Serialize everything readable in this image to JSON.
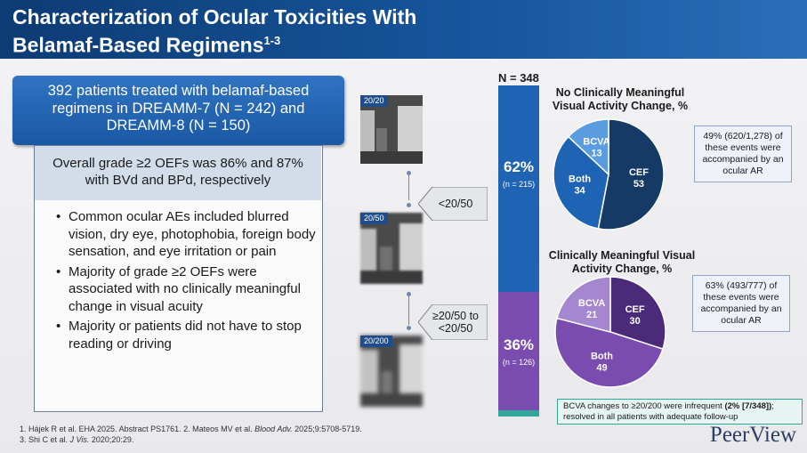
{
  "header": {
    "title_line1": "Characterization of Ocular Toxicities With",
    "title_line2": "Belamaf-Based Regimens",
    "title_sup": "1-3"
  },
  "left": {
    "intro": "392 patients treated with belamaf-based regimens in DREAMM-7 (N = 242) and DREAMM-8 (N = 150)",
    "grade_text": "Overall grade ≥2 OEFs was 86% and 87% with BVd and BPd, respectively",
    "bullets": [
      "Common ocular AEs included blurred vision, dry eye, photophobia, foreign body sensation, and eye irritation or pain",
      "Majority of grade ≥2 OEFs were associated with no clinically meaningful change in visual acuity",
      "Majority or patients did not have to stop reading or driving"
    ]
  },
  "photos": [
    {
      "label": "20/20"
    },
    {
      "label": "20/50"
    },
    {
      "label": "20/200"
    }
  ],
  "arrows": [
    {
      "label": "<20/50"
    },
    {
      "label": "≥20/50 to <20/50"
    }
  ],
  "bar": {
    "n_label": "N = 348",
    "blue_pct": "62%",
    "blue_n": "(n = 215)",
    "purple_pct": "36%",
    "purple_n": "(n = 126)"
  },
  "pie1": {
    "title": "No Clinically Meaningful Visual Activity Change, %",
    "callout": "49% (620/1,278) of these events were accompanied by an ocular AR",
    "slices": [
      {
        "label": "CEF",
        "value": 53,
        "color": "#163a66"
      },
      {
        "label": "Both",
        "value": 34,
        "color": "#1f63b4"
      },
      {
        "label": "BCVA",
        "value": 13,
        "color": "#5b9be0"
      }
    ]
  },
  "pie2": {
    "title": "Clinically Meaningful Visual Activity Change, %",
    "callout": "63% (493/777) of these events were accompanied by an ocular AR",
    "slices": [
      {
        "label": "CEF",
        "value": 30,
        "color": "#4b2a7a"
      },
      {
        "label": "Both",
        "value": 49,
        "color": "#7b4cb0"
      },
      {
        "label": "BCVA",
        "value": 21,
        "color": "#a487cf"
      }
    ]
  },
  "teal_note": {
    "text1": "BCVA changes to ≥20/200 were infrequent ",
    "text_bold": "(2% [7/348])",
    "text2": ";",
    "text3": "resolved in all patients with adequate follow-up"
  },
  "refs": {
    "line1_a": "1. Hájek R et al. EHA 2025. Abstract PS1761. 2. Mateos MV et al. ",
    "line1_b": "Blood Adv.",
    "line1_c": " 2025;9:5708-5719.",
    "line2_a": "3. Shi C et al. ",
    "line2_b": "J Vis.",
    "line2_c": " 2020;20:29."
  },
  "logo": "PeerView"
}
